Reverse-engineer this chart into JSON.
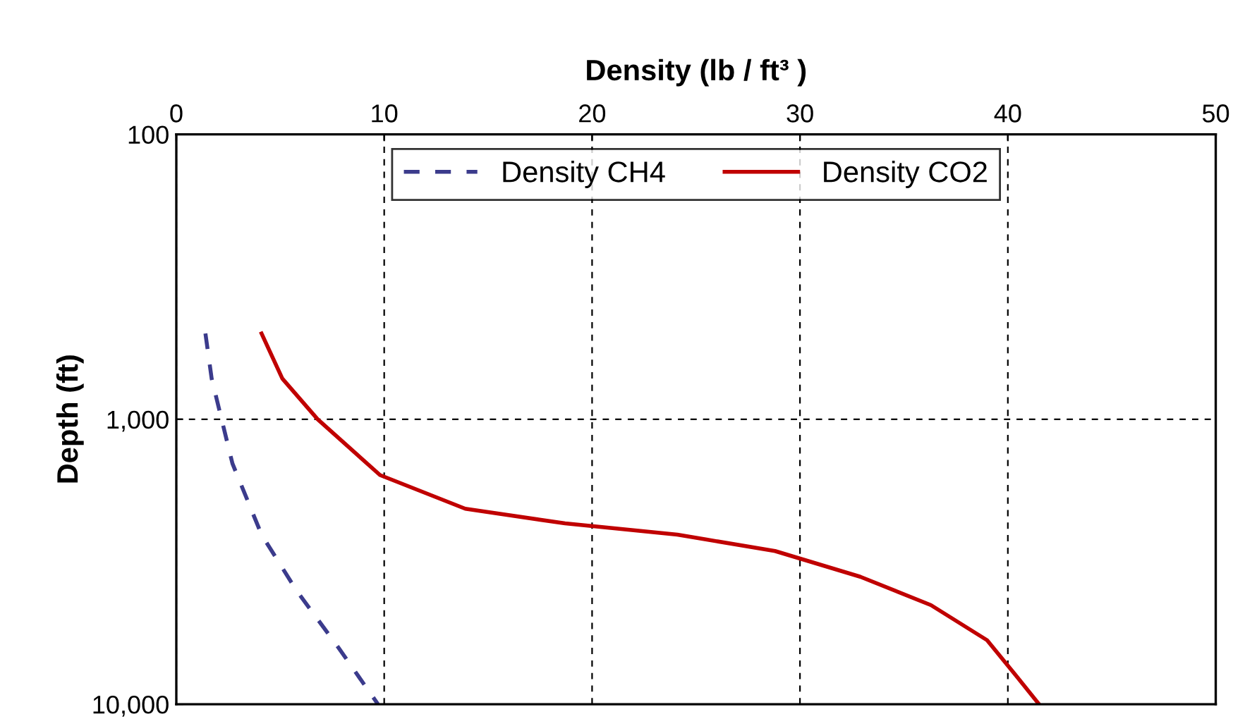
{
  "chart_data": {
    "type": "line",
    "xlabel": "Density (lb / ft³ )",
    "ylabel": "Depth (ft)",
    "xlim": [
      0,
      50
    ],
    "xticks": [
      0,
      10,
      20,
      30,
      40,
      50
    ],
    "ylim": [
      10000,
      100
    ],
    "yticks": [
      {
        "value": 100,
        "label": "100"
      },
      {
        "value": 1000,
        "label": "1,000"
      },
      {
        "value": 10000,
        "label": "10,000"
      }
    ],
    "log": "y",
    "grid": true,
    "legend": "top",
    "series": [
      {
        "name": "Density CH4",
        "color": "#3b3b8c",
        "line_style": "dashed",
        "x": [
          1.4,
          1.7,
          2.7,
          4.1,
          5.8,
          7.8,
          9.7
        ],
        "values": [
          500,
          720,
          1430,
          2540,
          4010,
          6330,
          10000
        ]
      },
      {
        "name": "Density CO2",
        "color": "#c00000",
        "line_style": "solid",
        "x": [
          4.1,
          5.1,
          6.8,
          9.8,
          13.9,
          18.7,
          24.1,
          28.8,
          32.9,
          36.3,
          39.0,
          40.4,
          41.5
        ],
        "values": [
          500,
          720,
          1000,
          1570,
          2060,
          2320,
          2540,
          2900,
          3570,
          4490,
          5960,
          7950,
          10000
        ]
      }
    ]
  }
}
